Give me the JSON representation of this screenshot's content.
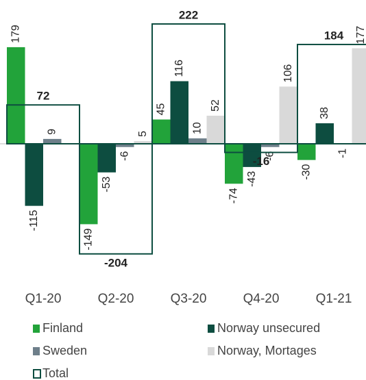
{
  "chart_data": {
    "type": "bar",
    "categories": [
      "Q1-20",
      "Q2-20",
      "Q3-20",
      "Q4-20",
      "Q1-21"
    ],
    "series": [
      {
        "name": "Finland",
        "color": "#22a33a",
        "values": [
          179,
          -149,
          45,
          -74,
          -30
        ]
      },
      {
        "name": "Norway unsecured",
        "color": "#0d4d40",
        "values": [
          -115,
          -53,
          116,
          -43,
          38
        ]
      },
      {
        "name": "Sweden",
        "color": "#6e7f8a",
        "values": [
          9,
          -6,
          10,
          -6,
          -1
        ]
      },
      {
        "name": "Norway, Mortages",
        "color": "#d9d9d9",
        "values": [
          null,
          5,
          52,
          106,
          177
        ]
      }
    ],
    "total": {
      "name": "Total",
      "color": "#0d4d40",
      "values": [
        72,
        -204,
        222,
        -16,
        184
      ]
    }
  }
}
